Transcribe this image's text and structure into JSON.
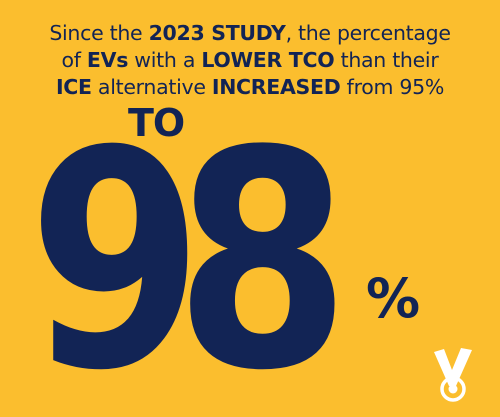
{
  "headline": {
    "line1": [
      {
        "text": "Since the ",
        "bold": false
      },
      {
        "text": "2023 STUDY",
        "bold": true
      },
      {
        "text": ", the percentage",
        "bold": false
      }
    ],
    "line2": [
      {
        "text": "of ",
        "bold": false
      },
      {
        "text": "EVs",
        "bold": true
      },
      {
        "text": " with a ",
        "bold": false
      },
      {
        "text": "LOWER TCO",
        "bold": true
      },
      {
        "text": " than their",
        "bold": false
      }
    ],
    "line3": [
      {
        "text": "ICE",
        "bold": true
      },
      {
        "text": " alternative ",
        "bold": false
      },
      {
        "text": "INCREASED",
        "bold": true
      },
      {
        "text": " from 95%",
        "bold": false
      }
    ]
  },
  "stat": {
    "prefix": "TO",
    "value": "98",
    "unit": "%"
  },
  "logo": {
    "icon": "checkmark-target-icon"
  },
  "colors": {
    "background": "#FBBE2E",
    "text": "#122455",
    "logo": "#FFFFFF"
  }
}
